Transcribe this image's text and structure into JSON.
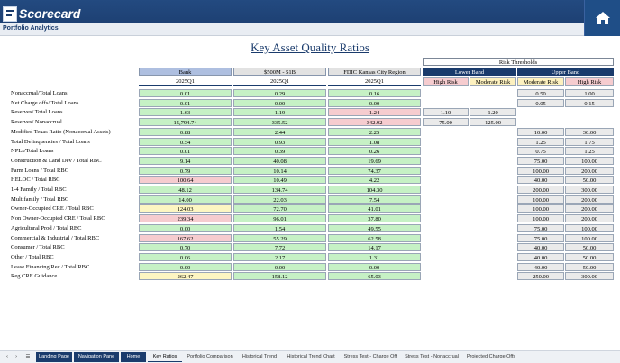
{
  "app": {
    "logo": "Scorecard",
    "subtitle": "Portfolio Analytics"
  },
  "page": {
    "title": "Key Asset Quality Ratios"
  },
  "colors": {
    "green": "#c6f1c5",
    "red": "#f6cccf",
    "yellow": "#fdf6c2",
    "gray": "#eaeaea",
    "white": "#ffffff",
    "headerBlue": "#aebfe0",
    "headerGray": "#e2e2e2",
    "navy": "#1a3b6c",
    "pink": "#f6cccf",
    "cream": "#fdf1bf"
  },
  "table": {
    "columns": [
      {
        "name": "Bank",
        "period": "2025Q1"
      },
      {
        "name": "$500M - $1B",
        "period": "2025Q1"
      },
      {
        "name": "FDIC Kansas City Region",
        "period": "2025Q1"
      }
    ],
    "rows": [
      {
        "label": "Nonaccrual/Total Loans",
        "values": [
          "0.01",
          "0.29",
          "0.16"
        ],
        "colors": [
          "green",
          "green",
          "green"
        ]
      },
      {
        "label": "Net Charge offs/ Total Loans",
        "values": [
          "0.01",
          "0.00",
          "0.00"
        ],
        "colors": [
          "green",
          "green",
          "green"
        ]
      },
      {
        "label": "Reserves/ Total Loans",
        "values": [
          "1.63",
          "1.19",
          "1.24"
        ],
        "colors": [
          "green",
          "green",
          "red"
        ]
      },
      {
        "label": "Reserves/ Nonaccrual",
        "values": [
          "15,794.74",
          "335.52",
          "342.92"
        ],
        "colors": [
          "green",
          "green",
          "red"
        ]
      },
      {
        "label": "Modified Texas Ratio (Nonaccrual Assets)",
        "values": [
          "0.88",
          "2.44",
          "2.25"
        ],
        "colors": [
          "green",
          "green",
          "green"
        ]
      },
      {
        "label": "Total Delinquencies / Total Loans",
        "values": [
          "0.54",
          "0.93",
          "1.08"
        ],
        "colors": [
          "green",
          "green",
          "green"
        ]
      },
      {
        "label": "NPLs/Total Loans",
        "values": [
          "0.01",
          "0.39",
          "0.26"
        ],
        "colors": [
          "green",
          "green",
          "green"
        ]
      },
      {
        "label": "Construction & Land Dev / Total RBC",
        "values": [
          "9.14",
          "40.08",
          "19.69"
        ],
        "colors": [
          "green",
          "green",
          "green"
        ]
      },
      {
        "label": "Farm Loans  / Total RBC",
        "values": [
          "0.79",
          "10.14",
          "74.37"
        ],
        "colors": [
          "green",
          "green",
          "green"
        ]
      },
      {
        "label": "HELOC / Total RBC",
        "values": [
          "100.64",
          "10.49",
          "4.22"
        ],
        "colors": [
          "red",
          "green",
          "green"
        ]
      },
      {
        "label": "1-4 Family / Total RBC",
        "values": [
          "48.12",
          "134.74",
          "104.30"
        ],
        "colors": [
          "green",
          "green",
          "green"
        ]
      },
      {
        "label": "Multifamily / Total RBC",
        "values": [
          "14.00",
          "22.03",
          "7.54"
        ],
        "colors": [
          "green",
          "green",
          "green"
        ]
      },
      {
        "label": "Owner-Occupied CRE / Total RBC",
        "values": [
          "124.03",
          "72.70",
          "41.01"
        ],
        "colors": [
          "yellow",
          "green",
          "green"
        ]
      },
      {
        "label": "Non Owner-Occupied CRE / Total RBC",
        "values": [
          "239.34",
          "96.01",
          "37.80"
        ],
        "colors": [
          "red",
          "green",
          "green"
        ]
      },
      {
        "label": "Agricultural Prod / Total RBC",
        "values": [
          "0.00",
          "1.54",
          "49.55"
        ],
        "colors": [
          "green",
          "green",
          "green"
        ]
      },
      {
        "label": "Commercial & Industrial / Total RBC",
        "values": [
          "167.62",
          "55.29",
          "62.58"
        ],
        "colors": [
          "red",
          "green",
          "green"
        ]
      },
      {
        "label": "Consumer / Total RBC",
        "values": [
          "0.70",
          "7.72",
          "14.17"
        ],
        "colors": [
          "green",
          "green",
          "green"
        ]
      },
      {
        "label": "Other / Total RBC",
        "values": [
          "0.06",
          "2.17",
          "1.31"
        ],
        "colors": [
          "green",
          "green",
          "green"
        ]
      },
      {
        "label": "Lease Financing Rec / Total RBC",
        "values": [
          "0.00",
          "0.00",
          "0.00"
        ],
        "colors": [
          "green",
          "green",
          "green"
        ]
      },
      {
        "label": "Reg CRE Guidance",
        "values": [
          "262.47",
          "158.12",
          "65.03"
        ],
        "colors": [
          "yellow",
          "green",
          "green"
        ]
      }
    ]
  },
  "thresholds": {
    "title": "Risk Thresholds",
    "lower_band": "Lower Band",
    "upper_band": "Upper Band",
    "sub_headers": [
      "High Risk",
      "Moderate Risk",
      "Moderate Risk",
      "High Risk"
    ],
    "rows": [
      [
        "",
        "",
        "0.50",
        "1.00"
      ],
      [
        "",
        "",
        "0.05",
        "0.15"
      ],
      [
        "1.10",
        "1.20",
        "",
        ""
      ],
      [
        "75.00",
        "125.00",
        "",
        ""
      ],
      [
        "",
        "",
        "10.00",
        "30.00"
      ],
      [
        "",
        "",
        "1.25",
        "1.75"
      ],
      [
        "",
        "",
        "0.75",
        "1.25"
      ],
      [
        "",
        "",
        "75.00",
        "100.00"
      ],
      [
        "",
        "",
        "100.00",
        "200.00"
      ],
      [
        "",
        "",
        "40.00",
        "50.00"
      ],
      [
        "",
        "",
        "200.00",
        "300.00"
      ],
      [
        "",
        "",
        "100.00",
        "200.00"
      ],
      [
        "",
        "",
        "100.00",
        "200.00"
      ],
      [
        "",
        "",
        "100.00",
        "200.00"
      ],
      [
        "",
        "",
        "75.00",
        "100.00"
      ],
      [
        "",
        "",
        "75.00",
        "100.00"
      ],
      [
        "",
        "",
        "40.00",
        "50.00"
      ],
      [
        "",
        "",
        "40.00",
        "50.00"
      ],
      [
        "",
        "",
        "40.00",
        "50.00"
      ],
      [
        "",
        "",
        "250.00",
        "300.00"
      ]
    ]
  },
  "tabs": [
    {
      "label": "Landing Page",
      "style": "dark"
    },
    {
      "label": "Navigation Pane",
      "style": "dark"
    },
    {
      "label": "Home",
      "style": "dark"
    },
    {
      "label": "Key Ratios",
      "style": "active"
    },
    {
      "label": "Portfolio Comparison",
      "style": "light"
    },
    {
      "label": "Historical Trend",
      "style": "light"
    },
    {
      "label": "Historical Trend Chart",
      "style": "light"
    },
    {
      "label": "Stress Test - Charge Off",
      "style": "light"
    },
    {
      "label": "Stress Test - Nonaccrual",
      "style": "light"
    },
    {
      "label": "Projected Charge Offs",
      "style": "light"
    }
  ],
  "tab_nav": {
    "prev": "‹",
    "next": "›",
    "menu": "☰"
  }
}
